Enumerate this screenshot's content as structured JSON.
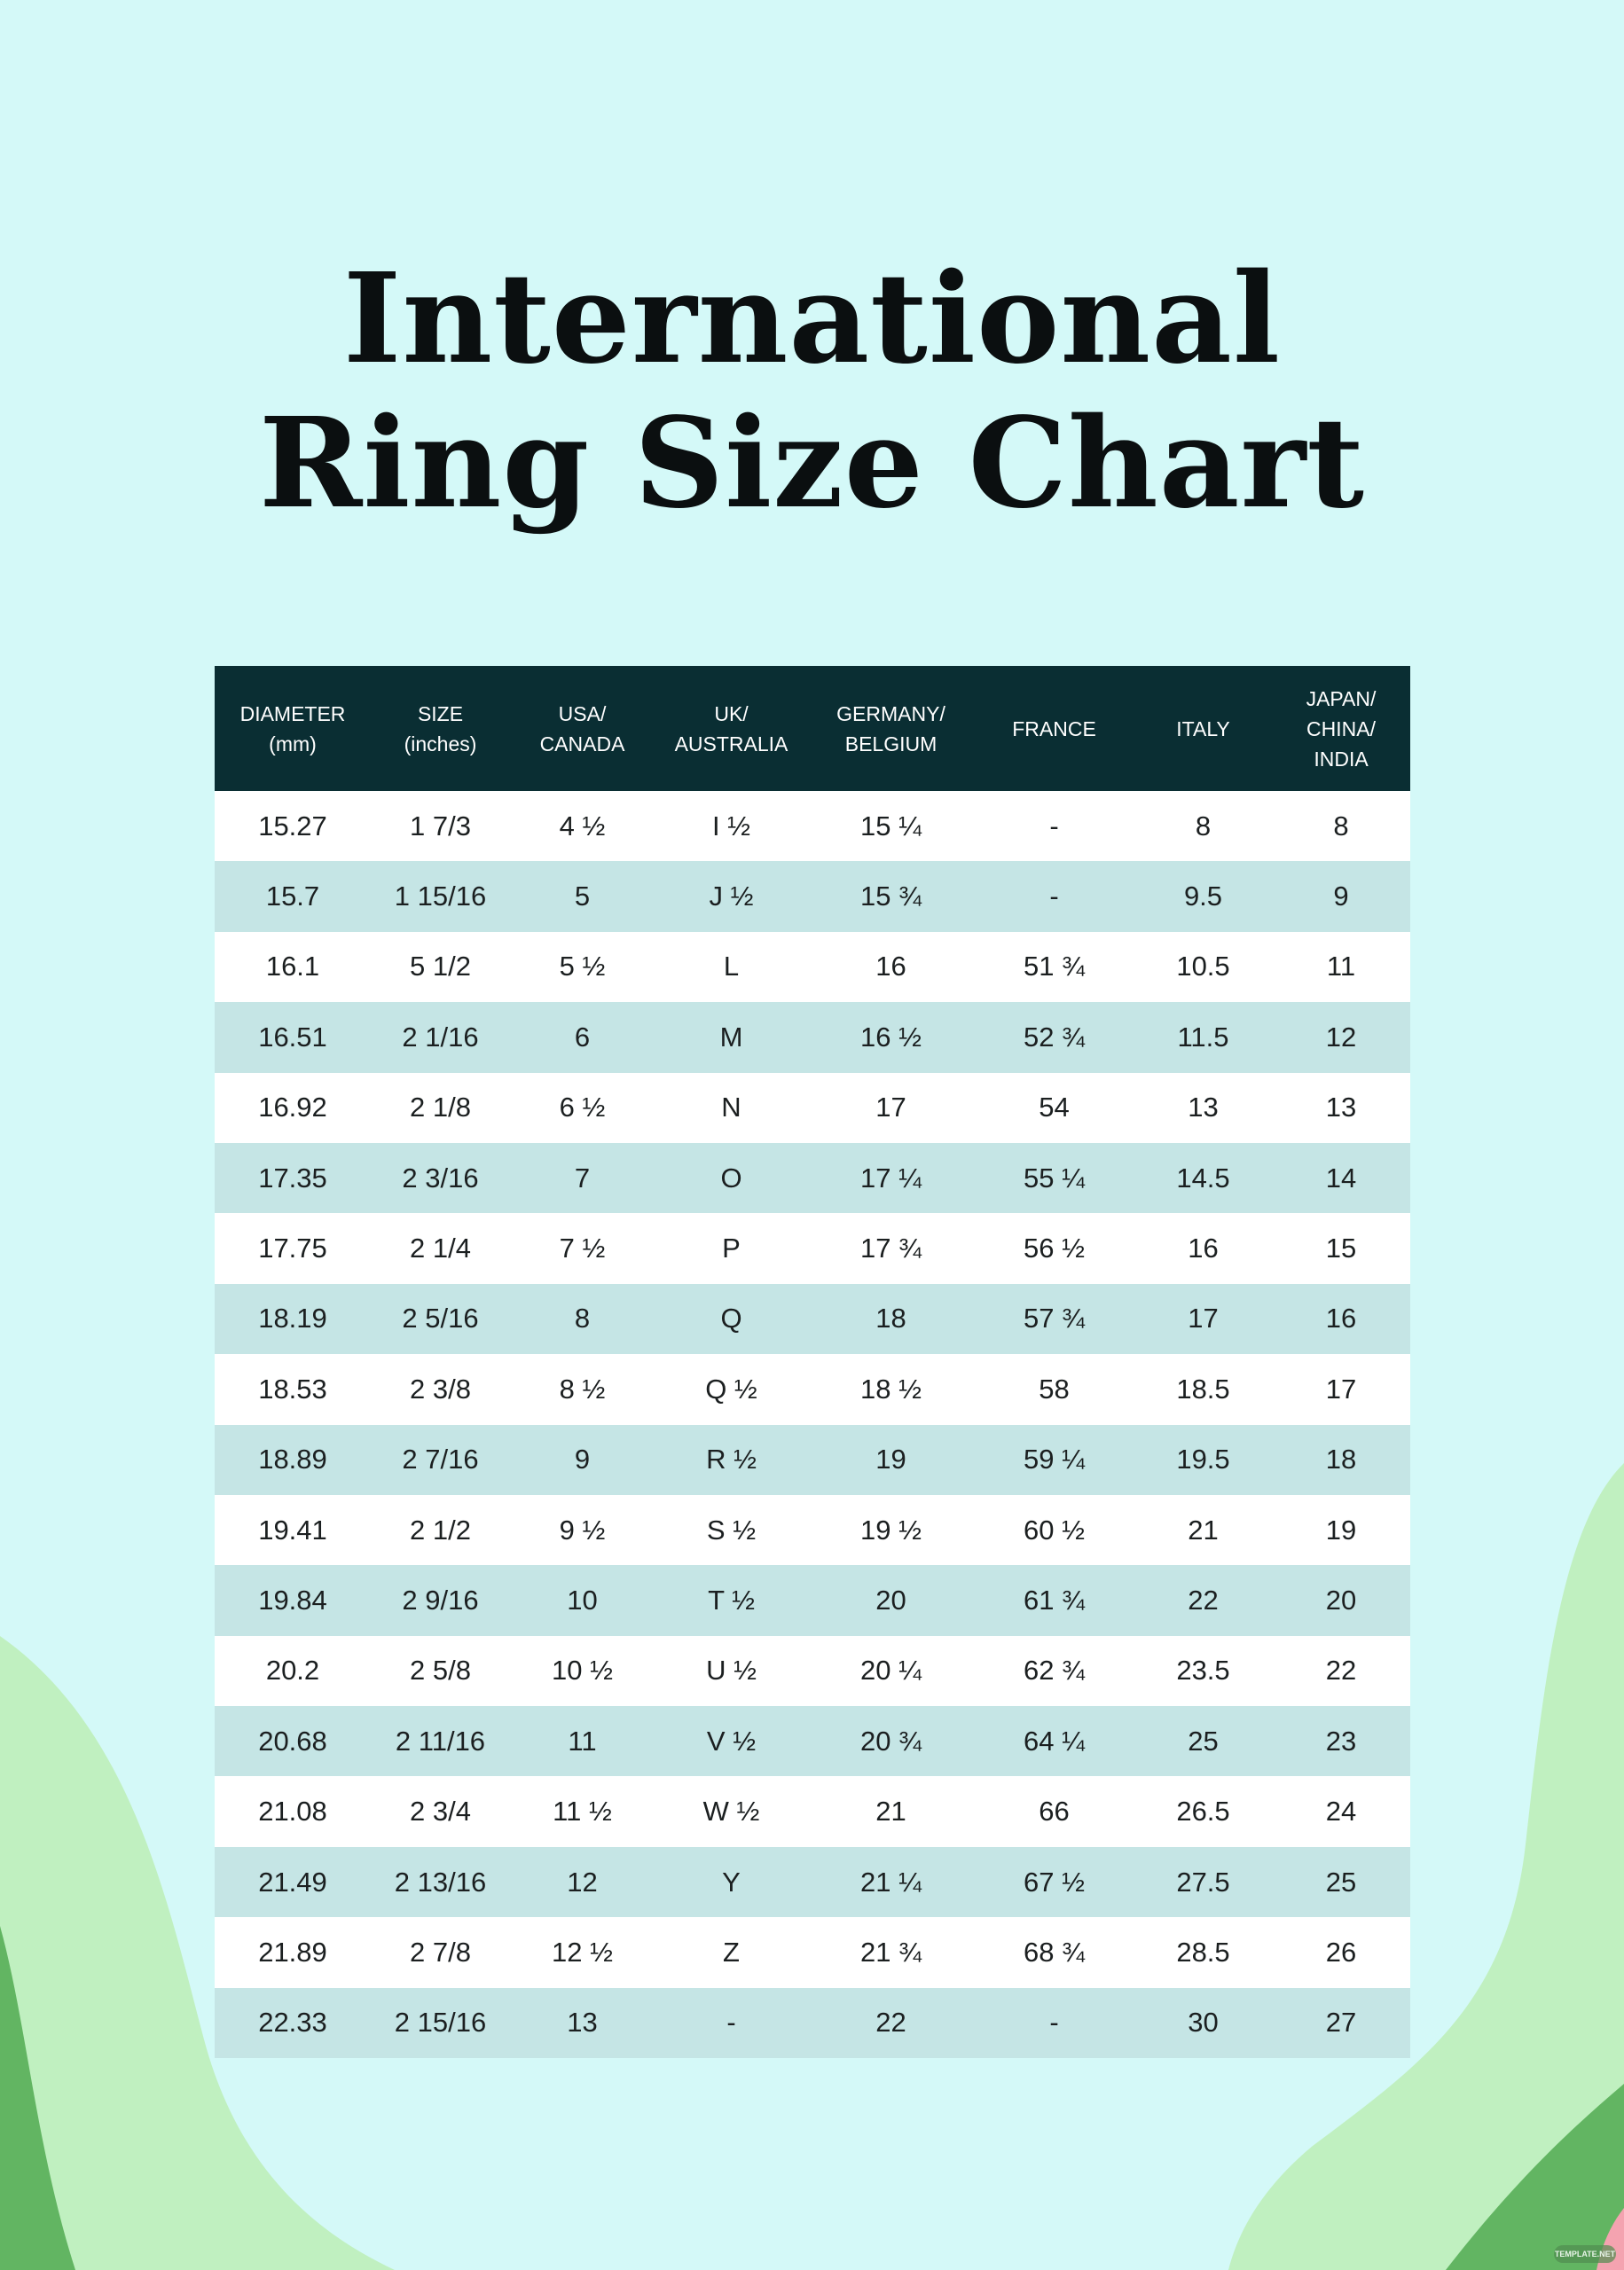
{
  "title": {
    "line1": "International",
    "line2": "Ring Size Chart"
  },
  "colors": {
    "background": "#d4f9f8",
    "header": "#0a2e33",
    "row_alt": "#c5e5e5",
    "row": "#ffffff",
    "green_light": "#c0f0c0",
    "green_dark": "#62b562",
    "pink": "#f4a3b0"
  },
  "table": {
    "headers": [
      [
        "DIAMETER",
        "(mm)"
      ],
      [
        "SIZE",
        "(inches)"
      ],
      [
        "USA/",
        "CANADA"
      ],
      [
        "UK/",
        "AUSTRALIA"
      ],
      [
        "GERMANY/",
        "BELGIUM"
      ],
      [
        "FRANCE"
      ],
      [
        "ITALY"
      ],
      [
        "JAPAN/",
        "CHINA/",
        "INDIA"
      ]
    ],
    "rows": [
      [
        "15.27",
        "1 7/3",
        "4 ½",
        "I ½",
        "15 ¼",
        "-",
        "8",
        "8"
      ],
      [
        "15.7",
        "1 15/16",
        "5",
        "J ½",
        "15 ¾",
        "-",
        "9.5",
        "9"
      ],
      [
        "16.1",
        "5 1/2",
        "5 ½",
        "L",
        "16",
        "51 ¾",
        "10.5",
        "11"
      ],
      [
        "16.51",
        "2 1/16",
        "6",
        "M",
        "16 ½",
        "52 ¾",
        "11.5",
        "12"
      ],
      [
        "16.92",
        "2 1/8",
        "6 ½",
        "N",
        "17",
        "54",
        "13",
        "13"
      ],
      [
        "17.35",
        "2 3/16",
        "7",
        "O",
        "17 ¼",
        "55 ¼",
        "14.5",
        "14"
      ],
      [
        "17.75",
        "2 1/4",
        "7 ½",
        "P",
        "17 ¾",
        "56 ½",
        "16",
        "15"
      ],
      [
        "18.19",
        "2 5/16",
        "8",
        "Q",
        "18",
        "57 ¾",
        "17",
        "16"
      ],
      [
        "18.53",
        "2 3/8",
        "8 ½",
        "Q ½",
        "18 ½",
        "58",
        "18.5",
        "17"
      ],
      [
        "18.89",
        "2 7/16",
        "9",
        "R ½",
        "19",
        "59 ¼",
        "19.5",
        "18"
      ],
      [
        "19.41",
        "2 1/2",
        "9 ½",
        "S ½",
        "19 ½",
        "60 ½",
        "21",
        "19"
      ],
      [
        "19.84",
        "2 9/16",
        "10",
        "T ½",
        "20",
        "61 ¾",
        "22",
        "20"
      ],
      [
        "20.2",
        "2 5/8",
        "10 ½",
        "U ½",
        "20 ¼",
        "62 ¾",
        "23.5",
        "22"
      ],
      [
        "20.68",
        "2 11/16",
        "11",
        "V ½",
        "20 ¾",
        "64 ¼",
        "25",
        "23"
      ],
      [
        "21.08",
        "2 3/4",
        "11 ½",
        "W ½",
        "21",
        "66",
        "26.5",
        "24"
      ],
      [
        "21.49",
        "2 13/16",
        "12",
        "Y",
        "21 ¼",
        "67 ½",
        "27.5",
        "25"
      ],
      [
        "21.89",
        "2 7/8",
        "12 ½",
        "Z",
        "21 ¾",
        "68 ¾",
        "28.5",
        "26"
      ],
      [
        "22.33",
        "2 15/16",
        "13",
        "-",
        "22",
        "-",
        "30",
        "27"
      ]
    ]
  },
  "watermark": "TEMPLATE.NET"
}
